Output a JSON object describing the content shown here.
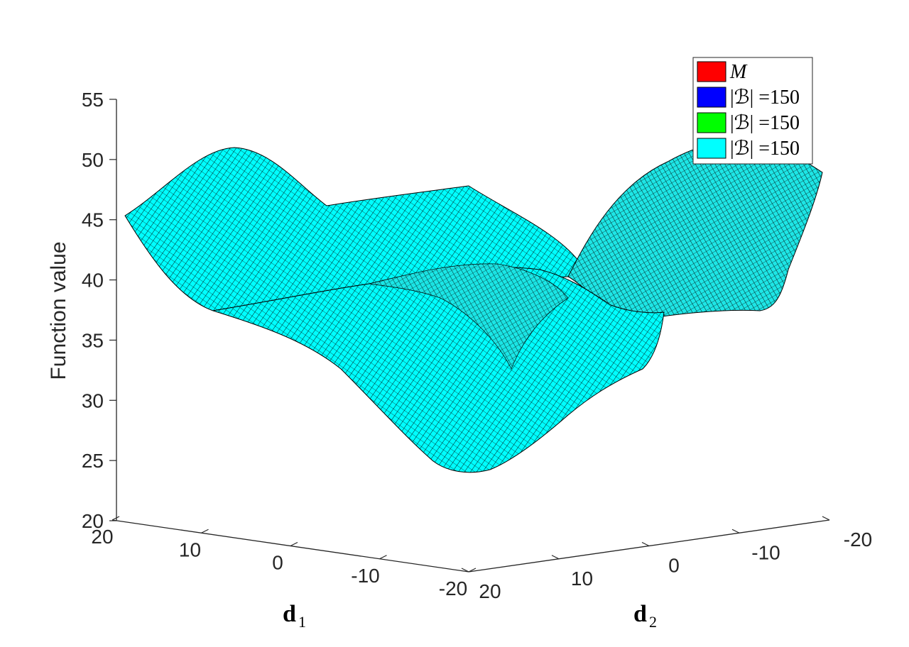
{
  "chart_data": {
    "type": "surface",
    "zlabel": "Function value",
    "xlabel": "d",
    "xlabel_sub": "1",
    "ylabel": "d",
    "ylabel_sub": "2",
    "zlim": [
      20,
      55
    ],
    "z_ticks": [
      "20",
      "25",
      "30",
      "35",
      "40",
      "45",
      "50",
      "55"
    ],
    "x_ticks": [
      "20",
      "10",
      "0",
      "-10",
      "-20"
    ],
    "y_ticks": [
      "20",
      "10",
      "0",
      "-10",
      "-20"
    ],
    "xlim": [
      -20,
      20
    ],
    "ylim": [
      -20,
      20
    ],
    "grid": false,
    "legend_position": "top-right",
    "legend": [
      {
        "label": "M",
        "color": "#ff0000"
      },
      {
        "label": "|ℬ| =150",
        "color": "#0000ff"
      },
      {
        "label": "|ℬ| =150",
        "color": "#00ff00"
      },
      {
        "label": "|ℬ| =150",
        "color": "#00ffff"
      }
    ],
    "surface_color": "#00ffff",
    "surface_mesh_color": "#000000",
    "surface_samples": {
      "d1": [
        -20,
        -10,
        0,
        10,
        20
      ],
      "d2_at_minus20": [
        37,
        37,
        38,
        48,
        47
      ],
      "d2_at_0": [
        40,
        38,
        36,
        36,
        44
      ],
      "d2_at_20": [
        33,
        34,
        24,
        36,
        45
      ],
      "approx_min": 24,
      "approx_max": 52
    }
  }
}
